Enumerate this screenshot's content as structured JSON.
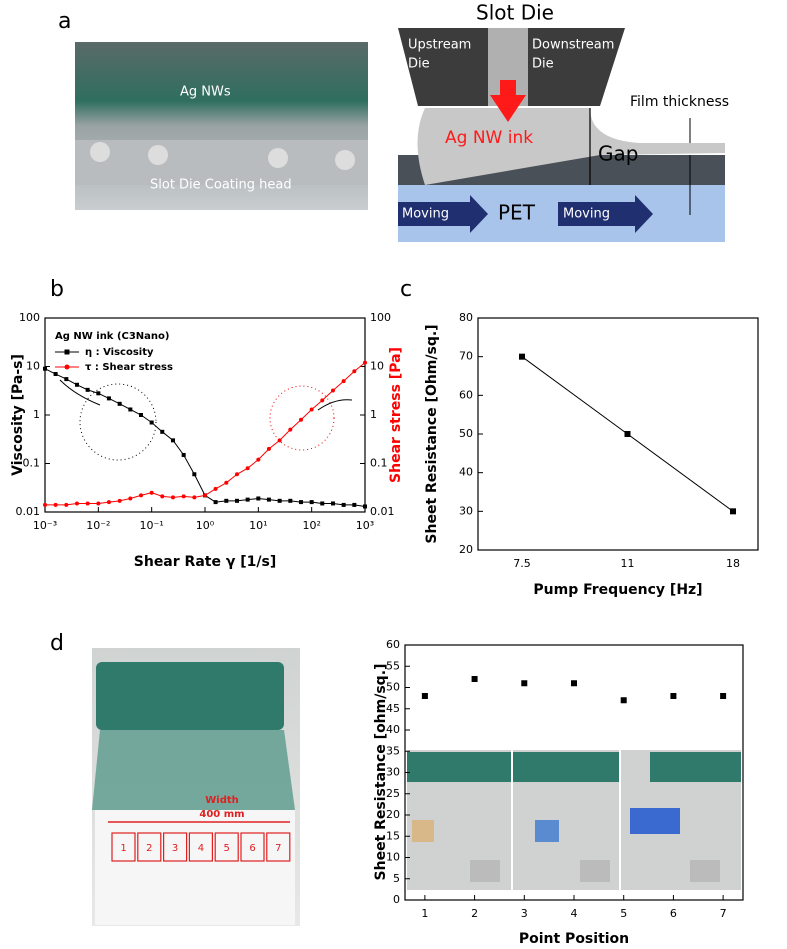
{
  "panel_labels": [
    "a",
    "b",
    "c",
    "d"
  ],
  "photo_a": {
    "label_top": "Ag NWs",
    "label_bottom": "Slot Die Coating head"
  },
  "diagram_a": {
    "title": "Slot Die",
    "upstream": [
      "Upstream",
      "Die"
    ],
    "downstream": [
      "Downstream",
      "Die"
    ],
    "ink": "Ag NW ink",
    "film": "Film thickness",
    "gap": "Gap",
    "moving_left": "Moving",
    "substrate": "PET",
    "moving_right": "Moving"
  },
  "photo_d": {
    "width": [
      "Width",
      "400 mm"
    ],
    "points": [
      "1",
      "2",
      "3",
      "4",
      "5",
      "6",
      "7"
    ]
  },
  "chart_data": [
    {
      "type": "line",
      "log_scale": true,
      "legend_title": "Ag NW ink (C3Nano)",
      "xlabel": "Shear Rate γ  [1/s]",
      "ylabel": "Viscosity [Pa-s]",
      "y2label": "Shear stress [Pa]",
      "x": [
        0.001,
        0.00158,
        0.00251,
        0.00398,
        0.00631,
        0.01,
        0.0158,
        0.0251,
        0.0398,
        0.0631,
        0.1,
        0.158,
        0.251,
        0.398,
        0.631,
        1,
        1.58,
        2.51,
        3.98,
        6.31,
        10,
        15.8,
        25.1,
        39.8,
        63.1,
        100,
        158,
        251,
        398,
        631,
        1000
      ],
      "series": [
        {
          "name": "η : Viscosity",
          "color": "#000000",
          "marker": "square",
          "values": [
            9,
            7,
            5.5,
            4.2,
            3.3,
            2.8,
            2.2,
            1.7,
            1.3,
            1,
            0.7,
            0.45,
            0.3,
            0.15,
            0.06,
            0.022,
            0.016,
            0.017,
            0.017,
            0.018,
            0.019,
            0.018,
            0.017,
            0.017,
            0.016,
            0.016,
            0.015,
            0.015,
            0.014,
            0.014,
            0.013
          ]
        },
        {
          "name": "τ : Shear stress",
          "color": "#ff0000",
          "marker": "circle",
          "axis": "y2",
          "values": [
            0.014,
            0.014,
            0.014,
            0.015,
            0.015,
            0.015,
            0.016,
            0.017,
            0.019,
            0.022,
            0.025,
            0.021,
            0.02,
            0.021,
            0.02,
            0.022,
            0.03,
            0.04,
            0.06,
            0.08,
            0.12,
            0.2,
            0.3,
            0.5,
            0.8,
            1.3,
            2,
            3.2,
            5,
            8,
            12
          ]
        }
      ],
      "xlim": [
        0.001,
        1000
      ],
      "xticks": [
        {
          "value": 0.001,
          "label": "10⁻³"
        },
        {
          "value": 0.01,
          "label": "10⁻²"
        },
        {
          "value": 0.1,
          "label": "10⁻¹"
        },
        {
          "value": 1,
          "label": "10⁰"
        },
        {
          "value": 10,
          "label": "10¹"
        },
        {
          "value": 100,
          "label": "10²"
        },
        {
          "value": 1000,
          "label": "10³"
        }
      ],
      "ylim": [
        0.01,
        100
      ],
      "yticks": [
        0.01,
        0.1,
        1,
        10,
        100
      ],
      "y2lim": [
        0.01,
        100
      ],
      "y2ticks": [
        0.01,
        0.1,
        1,
        10,
        100
      ]
    },
    {
      "type": "line",
      "marker": "square",
      "xlabel": "Pump Frequency [Hz]",
      "ylabel": "Sheet Resistance [Ohm/sq.]",
      "categories": [
        "7.5",
        "11",
        "18"
      ],
      "values": [
        70,
        50,
        30
      ],
      "color": "#000000",
      "ylim": [
        20,
        80
      ],
      "yticks": [
        20,
        30,
        40,
        50,
        60,
        70,
        80
      ]
    },
    {
      "type": "scatter",
      "marker": "square",
      "xlabel": "Point Position",
      "ylabel": "Sheet Resistance [ohm/sq.]",
      "x": [
        1,
        2,
        3,
        4,
        5,
        6,
        7
      ],
      "values": [
        48,
        52,
        51,
        51,
        47,
        48,
        48
      ],
      "color": "#000000",
      "xlim": [
        0.6,
        7.4
      ],
      "xticks": [
        1,
        2,
        3,
        4,
        5,
        6,
        7
      ],
      "ylim": [
        0,
        60
      ],
      "yticks": [
        0,
        5,
        10,
        15,
        20,
        25,
        30,
        35,
        40,
        45,
        50,
        55,
        60
      ]
    }
  ]
}
